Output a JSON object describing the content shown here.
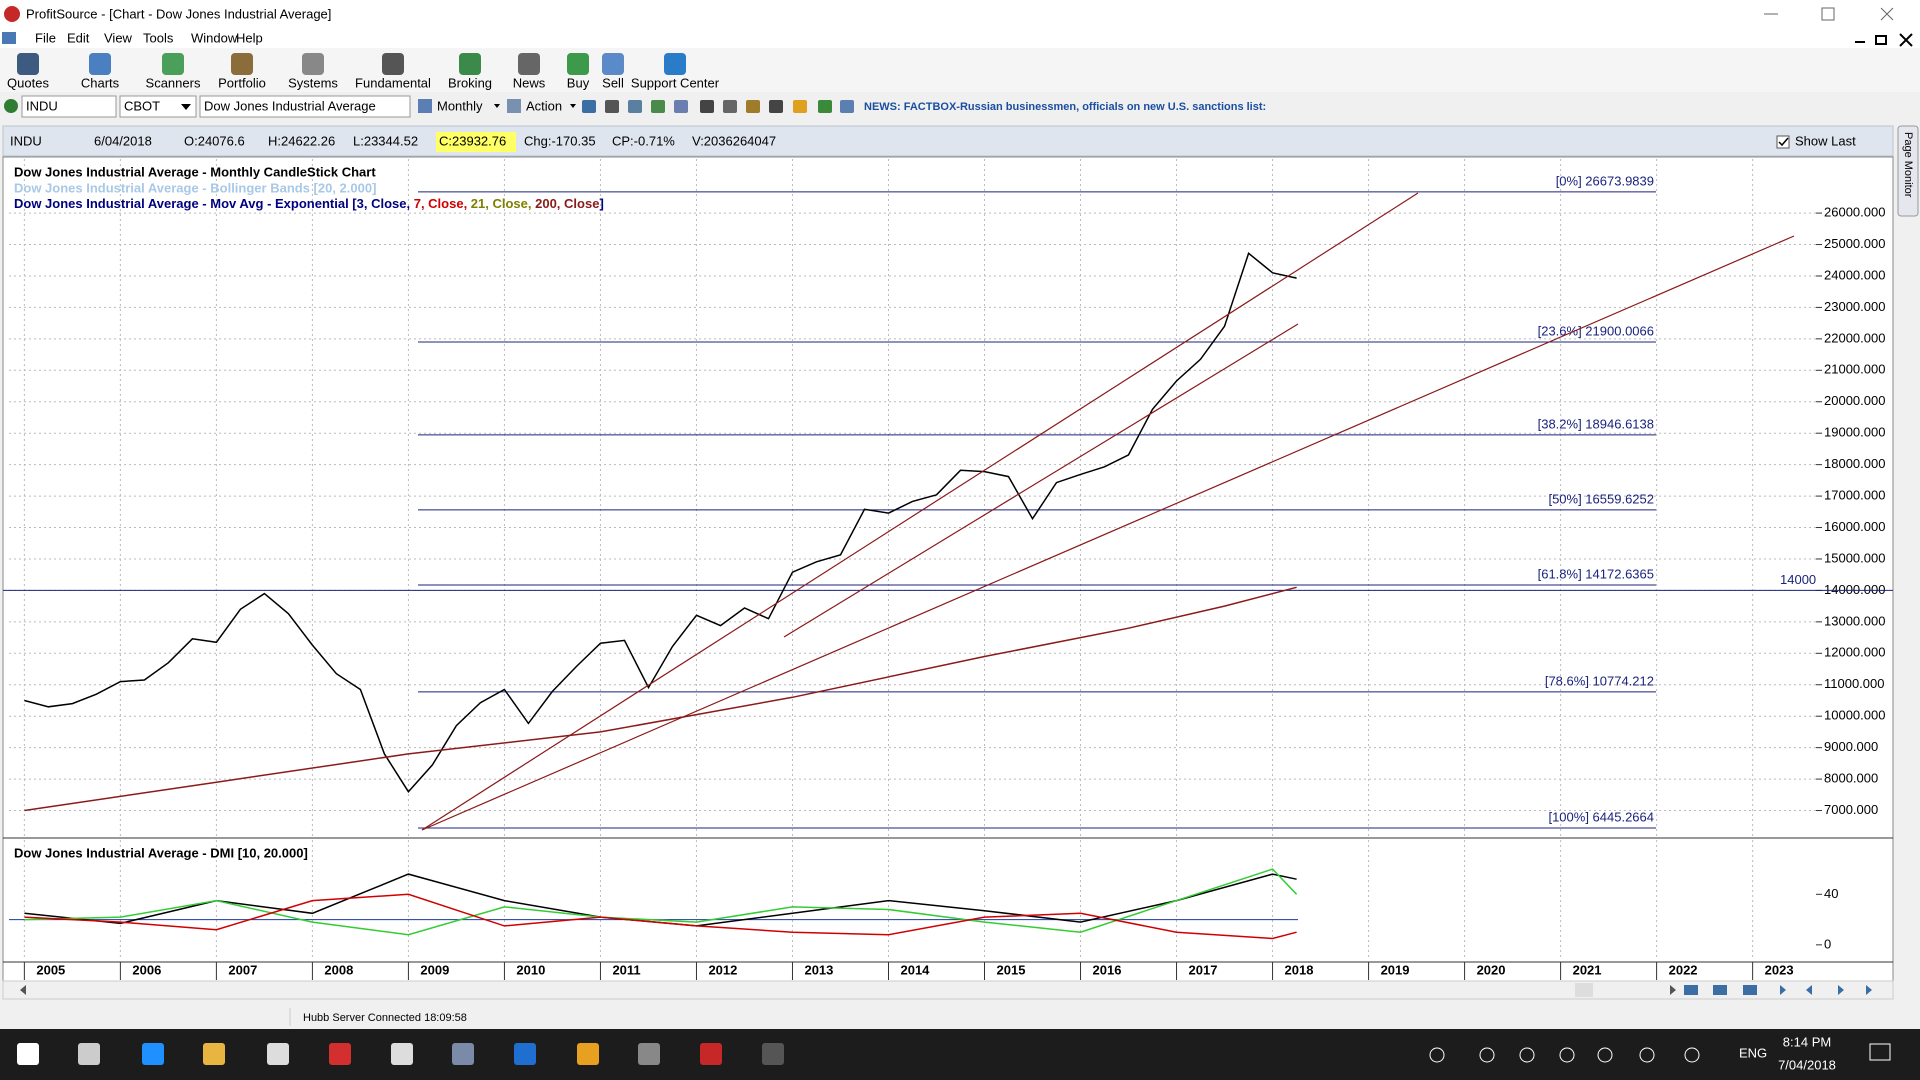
{
  "window": {
    "title": "ProfitSource - [Chart - Dow Jones Industrial Average]"
  },
  "menu": [
    "File",
    "Edit",
    "View",
    "Tools",
    "Window",
    "Help"
  ],
  "toolbar": [
    "Quotes",
    "Charts",
    "Scanners",
    "Portfolio",
    "Systems",
    "Fundamental",
    "Broking",
    "News",
    "Buy",
    "Sell",
    "Support Center"
  ],
  "symbol_bar": {
    "symbol": "INDU",
    "exchange": "CBOT",
    "name": "Dow Jones Industrial Average",
    "period": "Monthly",
    "action": "Action",
    "news": "NEWS: FACTBOX-Russian businessmen, officials on new U.S. sanctions list:"
  },
  "info_bar": {
    "symbol": "INDU",
    "date": "6/04/2018",
    "open": "O:24076.6",
    "high": "H:24622.26",
    "low": "L:23344.52",
    "close": "C:23932.76",
    "change": "Chg:-170.35",
    "change_pct": "CP:-0.71%",
    "volume": "V:2036264047",
    "show_last": "Show Last"
  },
  "side_tab": "Page Monitor",
  "status_bar": "Hubb Server Connected 18:09:58",
  "taskbar": {
    "language": "ENG",
    "time": "8:14 PM",
    "date": "7/04/2018"
  },
  "chart_data": [
    {
      "type": "line",
      "title": "Dow Jones Industrial Average - Monthly CandleStick Chart",
      "subtitle": "Dow Jones Industrial Average - Bollinger Bands [20, 2.000]",
      "legend_parts": [
        {
          "text": "Dow Jones Industrial Average - Mov Avg - Exponential [",
          "color": "#000080"
        },
        {
          "text": "3, Close, ",
          "color": "#000080"
        },
        {
          "text": "7, Close, ",
          "color": "#d00000"
        },
        {
          "text": "21, Close, ",
          "color": "#808000"
        },
        {
          "text": "200, Close",
          "color": "#8b1a1a"
        },
        {
          "text": "]",
          "color": "#000080"
        }
      ],
      "xlim": [
        2004.84,
        2023.66
      ],
      "xticks": [
        2005,
        2006,
        2007,
        2008,
        2009,
        2010,
        2011,
        2012,
        2013,
        2014,
        2015,
        2016,
        2017,
        2018,
        2019,
        2020,
        2021,
        2022,
        2023
      ],
      "ylim": [
        6190,
        27720
      ],
      "yticks": [
        {
          "value": 7000,
          "label": "7000.000"
        },
        {
          "value": 8000,
          "label": "8000.000"
        },
        {
          "value": 9000,
          "label": "9000.000"
        },
        {
          "value": 10000,
          "label": "10000.000"
        },
        {
          "value": 11000,
          "label": "11000.000"
        },
        {
          "value": 12000,
          "label": "12000.000"
        },
        {
          "value": 13000,
          "label": "13000.000"
        },
        {
          "value": 14000,
          "label": "14000.000"
        },
        {
          "value": 15000,
          "label": "15000.000"
        },
        {
          "value": 16000,
          "label": "16000.000"
        },
        {
          "value": 17000,
          "label": "17000.000"
        },
        {
          "value": 18000,
          "label": "18000.000"
        },
        {
          "value": 19000,
          "label": "19000.000"
        },
        {
          "value": 20000,
          "label": "20000.000"
        },
        {
          "value": 21000,
          "label": "21000.000"
        },
        {
          "value": 22000,
          "label": "22000.000"
        },
        {
          "value": 23000,
          "label": "23000.000"
        },
        {
          "value": 24000,
          "label": "24000.000"
        },
        {
          "value": 25000,
          "label": "25000.000"
        },
        {
          "value": 26000,
          "label": "26000.000"
        }
      ],
      "grid": true,
      "series": [
        {
          "color": "#000000",
          "x": [
            2005,
            2005.25,
            2005.5,
            2005.75,
            2006,
            2006.25,
            2006.5,
            2006.75,
            2007,
            2007.25,
            2007.5,
            2007.75,
            2008,
            2008.25,
            2008.5,
            2008.75,
            2009,
            2009.25,
            2009.5,
            2009.75,
            2010,
            2010.25,
            2010.5,
            2010.75,
            2011,
            2011.25,
            2011.5,
            2011.75,
            2012,
            2012.25,
            2012.5,
            2012.75,
            2013,
            2013.25,
            2013.5,
            2013.75,
            2014,
            2014.25,
            2014.5,
            2014.75,
            2015,
            2015.25,
            2015.5,
            2015.75,
            2016,
            2016.25,
            2016.5,
            2016.75,
            2017,
            2017.25,
            2017.5,
            2017.75,
            2018,
            2018.25
          ],
          "values": [
            10500,
            10300,
            10400,
            10700,
            11100,
            11150,
            11700,
            12460,
            12350,
            13400,
            13900,
            13260,
            12260,
            11350,
            10850,
            8800,
            7600,
            8450,
            9700,
            10430,
            10850,
            9770,
            10790,
            11580,
            12320,
            12410,
            10910,
            12220,
            13210,
            12880,
            13440,
            13100,
            14580,
            14910,
            15130,
            16580,
            16460,
            16830,
            17040,
            17820,
            17780,
            17620,
            16280,
            17430,
            17690,
            17930,
            18310,
            19760,
            20660,
            21350,
            22400,
            24720,
            24100,
            23932.76
          ]
        },
        {
          "color": "#8b1a1a",
          "x": [
            2005,
            2007,
            2009,
            2011,
            2013,
            2015,
            2016.5,
            2017.5,
            2018.25
          ],
          "values": [
            7000,
            7900,
            8800,
            9500,
            10600,
            11900,
            12800,
            13500,
            14100
          ]
        }
      ],
      "fib_levels": [
        {
          "value": 26673.9839,
          "label": "[0%] 26673.9839"
        },
        {
          "value": 21900.0066,
          "label": "[23.6%] 21900.0066"
        },
        {
          "value": 18946.6138,
          "label": "[38.2%] 18946.6138"
        },
        {
          "value": 16559.6252,
          "label": "[50%] 16559.6252"
        },
        {
          "value": 14172.6365,
          "label": "[61.8%] 14172.6365"
        },
        {
          "value": 10774.212,
          "label": "[78.6%] 10774.212"
        },
        {
          "value": 6445.2664,
          "label": "[100%] 6445.2664"
        }
      ],
      "horizontal_line": 14000
    },
    {
      "type": "line",
      "title": "Dow Jones Industrial Average - DMI [10, 20.000]",
      "xlim": [
        2004.84,
        2023.66
      ],
      "ylim": [
        -12,
        83
      ],
      "yticks": [
        0,
        40
      ],
      "reference_line": 20,
      "x": [
        2005,
        2006,
        2007,
        2008,
        2009,
        2010,
        2011,
        2012,
        2013,
        2014,
        2015,
        2016,
        2017,
        2018,
        2018.25
      ],
      "series": [
        {
          "color": "#000000",
          "values": [
            25,
            17,
            35,
            25,
            56,
            35,
            22,
            15,
            25,
            35,
            27,
            18,
            35,
            56,
            52
          ]
        },
        {
          "color": "#33cc33",
          "values": [
            20,
            22,
            35,
            18,
            8,
            30,
            22,
            18,
            30,
            28,
            18,
            10,
            35,
            60,
            40
          ]
        },
        {
          "color": "#d00000",
          "values": [
            22,
            18,
            12,
            35,
            40,
            15,
            22,
            15,
            10,
            8,
            22,
            25,
            10,
            5,
            10
          ]
        }
      ]
    }
  ]
}
